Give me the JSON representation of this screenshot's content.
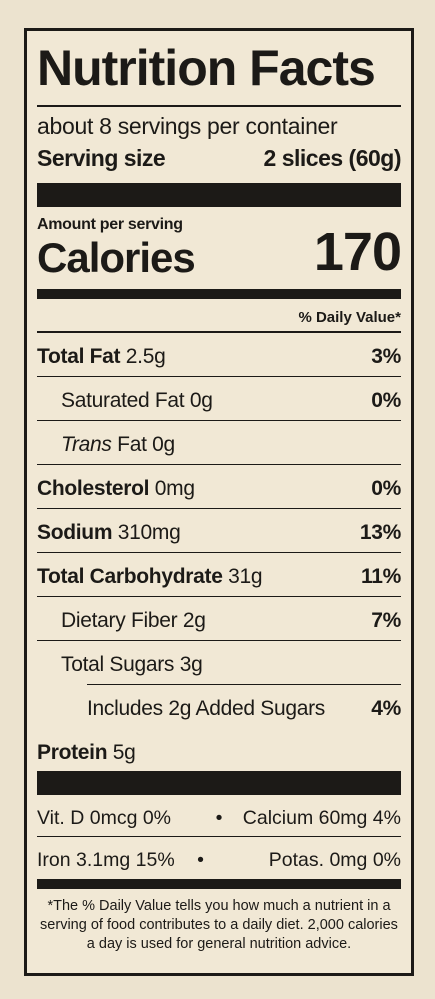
{
  "header": {
    "title": "Nutrition Facts",
    "servings": "about 8 servings per container",
    "serving_size_label": "Serving size",
    "serving_size_value": "2 slices (60g)"
  },
  "calories": {
    "amount_per_serving": "Amount per serving",
    "label": "Calories",
    "value": "170"
  },
  "daily_value_header": "% Daily Value*",
  "rows": [
    {
      "label": "Total Fat",
      "amount": "2.5g",
      "dv": "3%"
    },
    {
      "label": "Saturated Fat",
      "amount": "0g",
      "dv": "0%"
    },
    {
      "label_italic": "Trans",
      "label": "Fat",
      "amount": "0g"
    },
    {
      "label": "Cholesterol",
      "amount": "0mg",
      "dv": "0%"
    },
    {
      "label": "Sodium",
      "amount": "310mg",
      "dv": "13%"
    },
    {
      "label": "Total Carbohydrate",
      "amount": "31g",
      "dv": "11%"
    },
    {
      "label": "Dietary Fiber",
      "amount": "2g",
      "dv": "7%"
    },
    {
      "label": "Total Sugars",
      "amount": "3g"
    },
    {
      "label": "Includes 2g Added Sugars",
      "dv": "4%"
    },
    {
      "label": "Protein",
      "amount": "5g"
    }
  ],
  "vitamins": [
    [
      "Vit. D 0mcg 0%",
      "•",
      "Calcium 60mg 4%"
    ],
    [
      "Iron 3.1mg 15%",
      "•",
      "Potas. 0mg 0%"
    ]
  ],
  "footnote": "*The % Daily Value tells you how much a nutrient in a serving of food contributes to a daily diet. 2,000 calories a day is used for general nutrition advice."
}
